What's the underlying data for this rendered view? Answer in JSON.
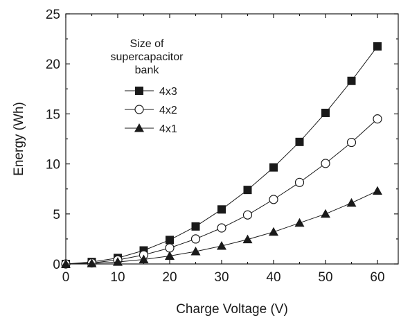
{
  "chart_data": {
    "type": "line",
    "xlabel": "Charge Voltage (V)",
    "ylabel": "Energy (Wh)",
    "xlim": [
      0,
      64
    ],
    "ylim": [
      0,
      25
    ],
    "xticks": [
      0,
      10,
      20,
      30,
      40,
      50,
      60
    ],
    "yticks": [
      0,
      5,
      10,
      15,
      20,
      25
    ],
    "x": [
      0,
      5,
      10,
      15,
      20,
      25,
      30,
      35,
      40,
      45,
      50,
      55,
      60
    ],
    "legend": {
      "title_lines": [
        "Size of",
        "supercapacitor",
        "bank"
      ],
      "placement": "top-left"
    },
    "series": [
      {
        "name": "4x3",
        "marker": "filled-square",
        "values": [
          0,
          0.2,
          0.6,
          1.35,
          2.4,
          3.75,
          5.45,
          7.4,
          9.65,
          12.2,
          15.1,
          18.3,
          21.75
        ]
      },
      {
        "name": "4x2",
        "marker": "open-circle",
        "values": [
          0,
          0.1,
          0.4,
          0.9,
          1.6,
          2.5,
          3.6,
          4.9,
          6.45,
          8.15,
          10.05,
          12.15,
          14.5
        ]
      },
      {
        "name": "4x1",
        "marker": "filled-triangle",
        "values": [
          0,
          0.05,
          0.2,
          0.45,
          0.8,
          1.25,
          1.8,
          2.45,
          3.2,
          4.1,
          5.0,
          6.1,
          7.3
        ]
      }
    ]
  }
}
